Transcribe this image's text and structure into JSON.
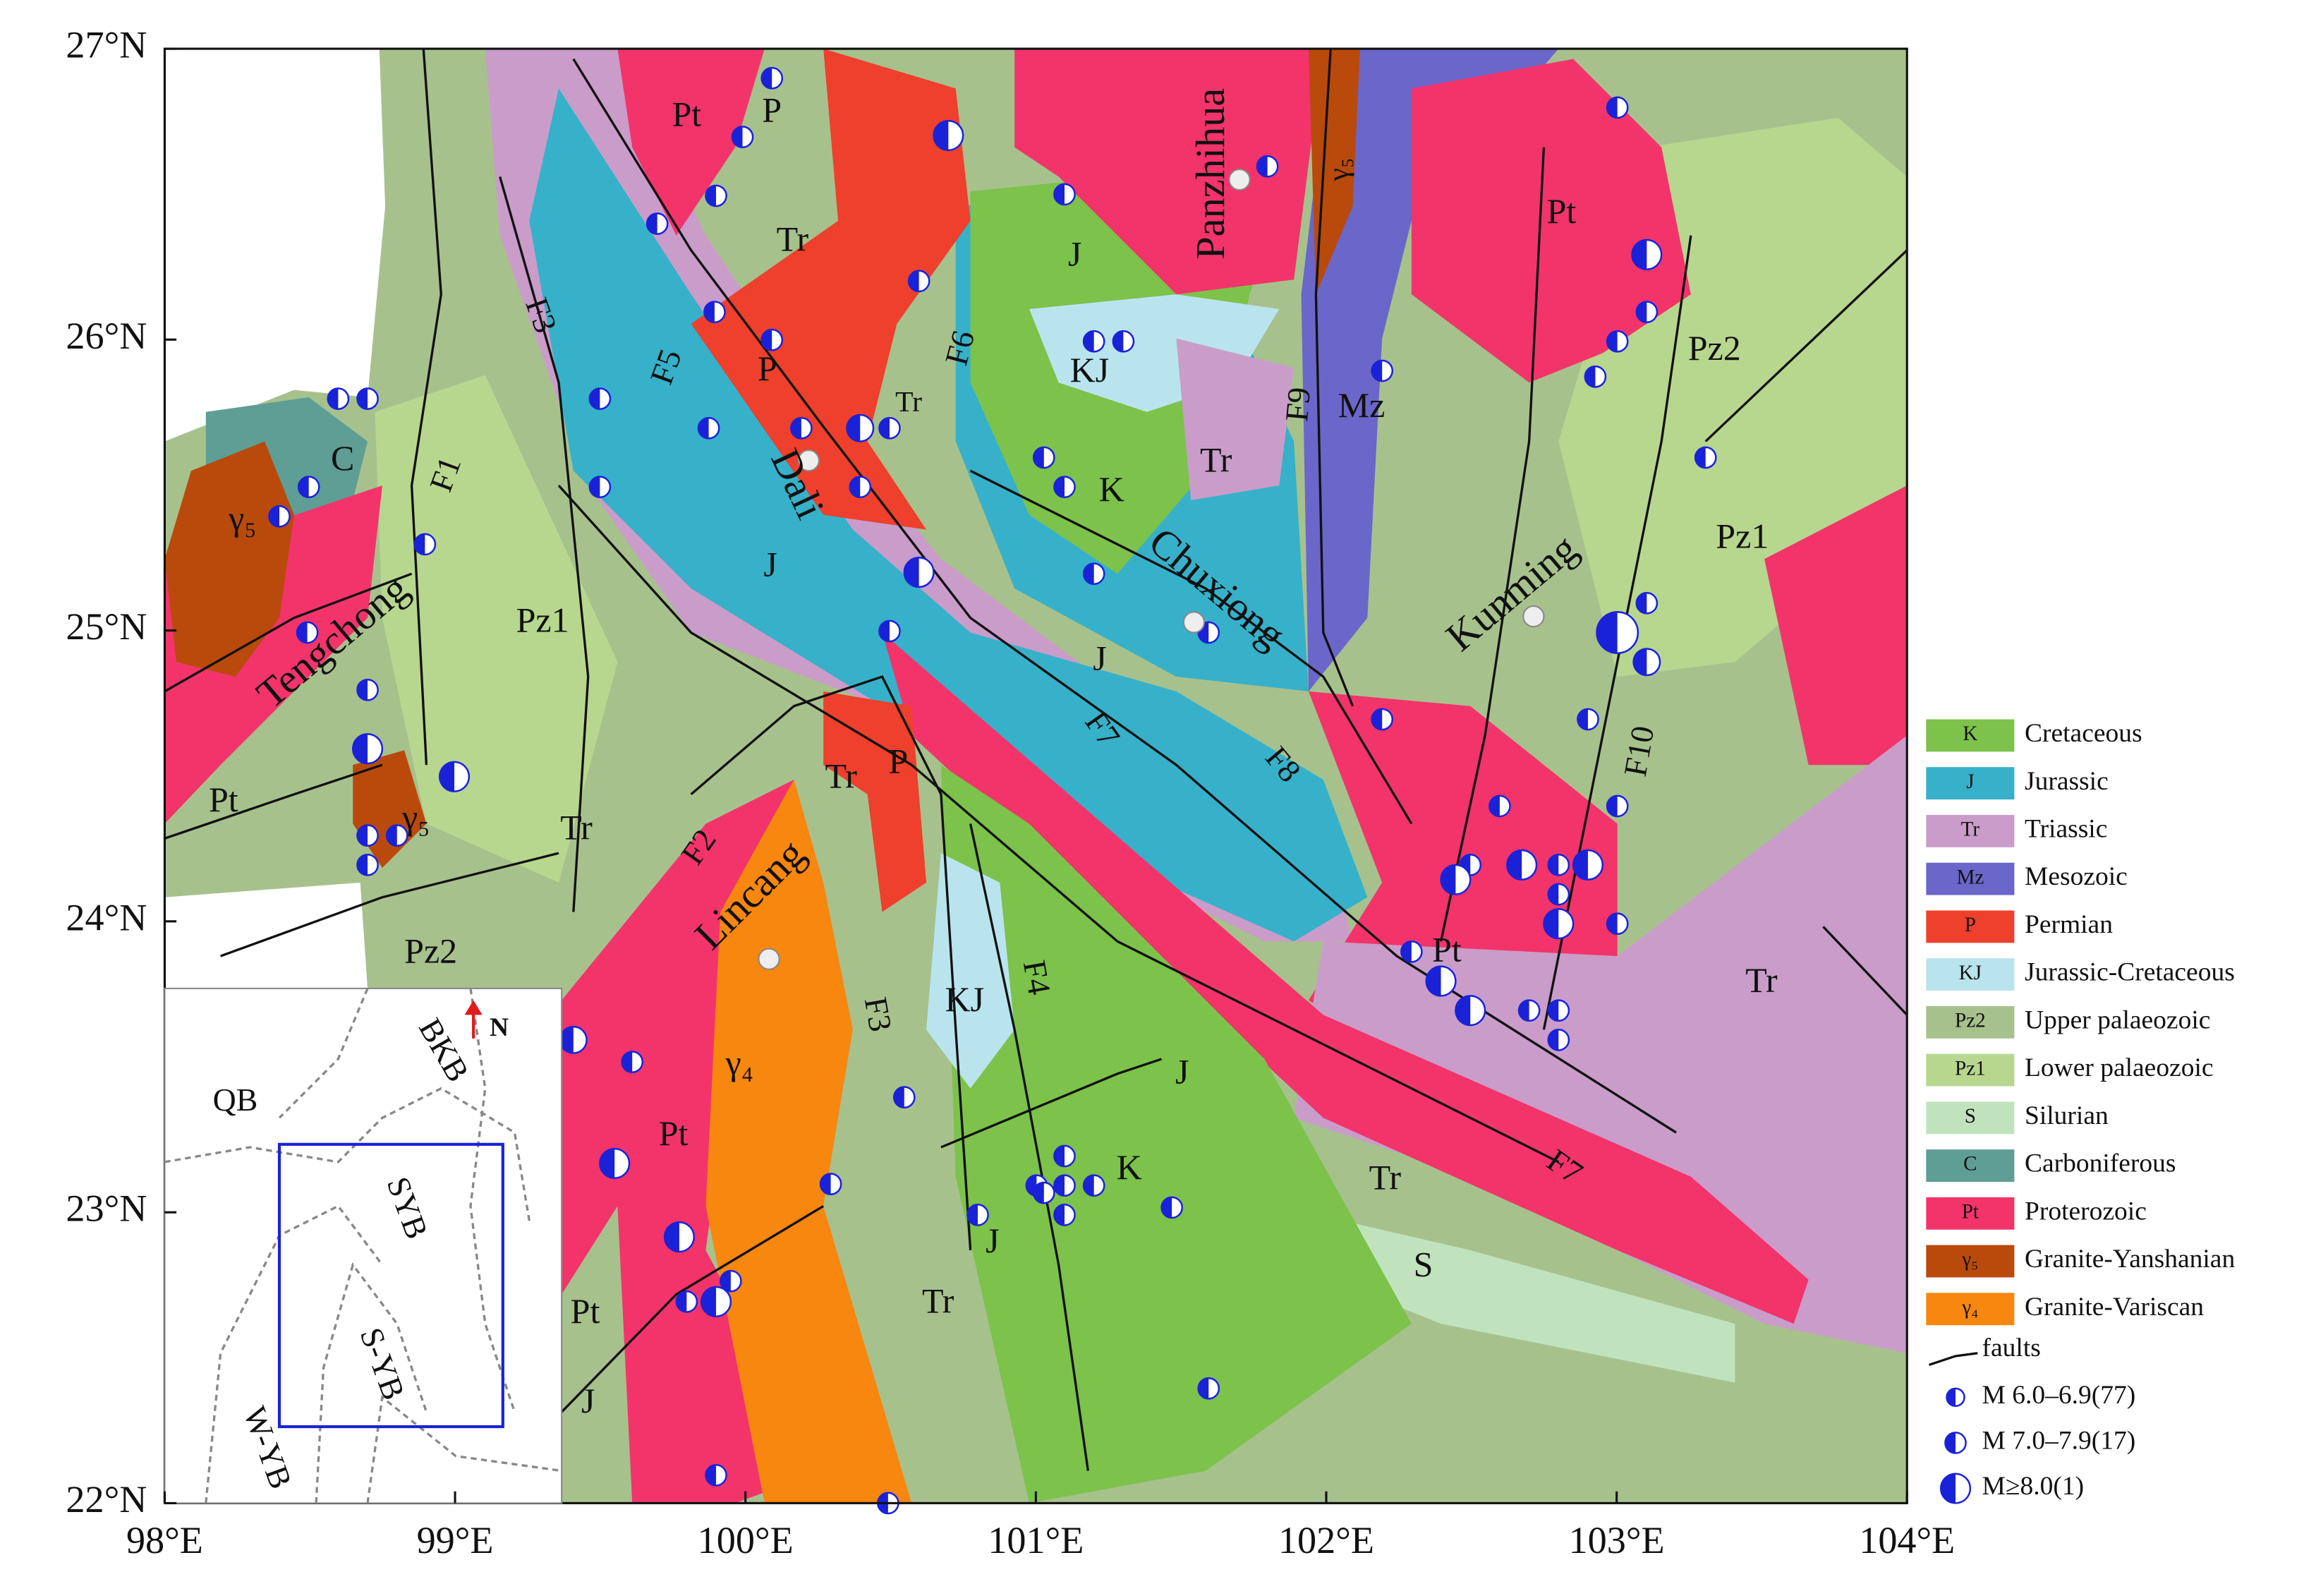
{
  "axes": {
    "x_ticks": [
      {
        "value": 98,
        "label": "98°E"
      },
      {
        "value": 99,
        "label": "99°E"
      },
      {
        "value": 100,
        "label": "100°E"
      },
      {
        "value": 101,
        "label": "101°E"
      },
      {
        "value": 102,
        "label": "102°E"
      },
      {
        "value": 103,
        "label": "103°E"
      },
      {
        "value": 104,
        "label": "104°E"
      }
    ],
    "y_ticks": [
      {
        "value": 22,
        "label": "22°N"
      },
      {
        "value": 23,
        "label": "23°N"
      },
      {
        "value": 24,
        "label": "24°N"
      },
      {
        "value": 25,
        "label": "25°N"
      },
      {
        "value": 26,
        "label": "26°N"
      },
      {
        "value": 27,
        "label": "27°N"
      }
    ]
  },
  "cities": [
    "Panzhihua",
    "Dali",
    "Chuxiong",
    "Kunming",
    "Tengchong",
    "Lincang"
  ],
  "map_labels": [
    "Pt",
    "P",
    "Tr",
    "P",
    "Tr",
    "J",
    "KJ",
    "K",
    "Tr",
    "Mz",
    "Pt",
    "Pz2",
    "Pz1",
    "J",
    "J",
    "Tr",
    "P",
    "Tr",
    "Pz1",
    "C",
    "γ₅",
    "Pt",
    "γ₅",
    "Pz2",
    "KJ",
    "J",
    "K",
    "J",
    "Tr",
    "Pt",
    "Pt",
    "J",
    "γ₄",
    "Tr",
    "S",
    "Tr",
    "Pt",
    "γ₅"
  ],
  "faults": [
    "F1",
    "F2",
    "F3",
    "F3",
    "F4",
    "F5",
    "F6",
    "F7",
    "F7",
    "F8",
    "F9",
    "F10"
  ],
  "legend": [
    {
      "code": "K",
      "name": "Cretaceous",
      "color": "#7cc24b"
    },
    {
      "code": "J",
      "name": "Jurassic",
      "color": "#36b1c9"
    },
    {
      "code": "Tr",
      "name": "Triassic",
      "color": "#c99cca"
    },
    {
      "code": "Mz",
      "name": "Mesozoic",
      "color": "#6b66c9"
    },
    {
      "code": "P",
      "name": "Permian",
      "color": "#ee402c"
    },
    {
      "code": "KJ",
      "name": "Jurassic-Cretaceous",
      "color": "#b9e4ee"
    },
    {
      "code": "Pz2",
      "name": "Upper palaeozoic",
      "color": "#a7c18d"
    },
    {
      "code": "Pz1",
      "name": "Lower palaeozoic",
      "color": "#b7d78f"
    },
    {
      "code": "S",
      "name": "Silurian",
      "color": "#c0e3bd"
    },
    {
      "code": "C",
      "name": "Carboniferous",
      "color": "#5e9e94"
    },
    {
      "code": "Pt",
      "name": "Proterozoic",
      "color": "#f2346b"
    },
    {
      "code": "γ₅",
      "name": "Granite-Yanshanian",
      "color": "#b94a0b"
    },
    {
      "code": "γ₄",
      "name": "Granite-Variscan",
      "color": "#f7870f"
    }
  ],
  "legend_faults": "faults",
  "legend_quakes": [
    "M 6.0–6.9(77)",
    "M 7.0–7.9(17)",
    "M≥8.0(1)"
  ],
  "inset": {
    "north": "N",
    "blocks": [
      "QB",
      "BKB",
      "SYB",
      "S-YB",
      "W-YB"
    ]
  }
}
